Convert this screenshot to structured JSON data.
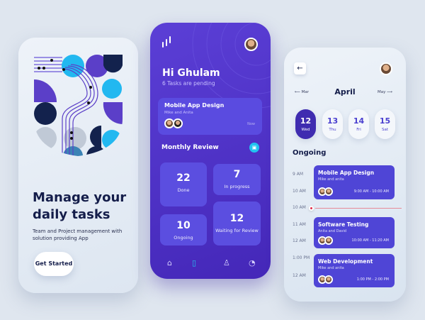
{
  "onboarding": {
    "heading_line1": "Manage your",
    "heading_line2": "daily tasks",
    "subtitle": "Team and Project management with solution providing App",
    "cta": "Get Started"
  },
  "home": {
    "greeting": "Hi Ghulam",
    "pending": "6 Tasks are pending",
    "featured": {
      "title": "Mobile App Design",
      "members": "Mike and Anita",
      "time": "Now"
    },
    "section_title": "Monthly Review",
    "stats": [
      {
        "value": "22",
        "label": "Done"
      },
      {
        "value": "7",
        "label": "In progress"
      },
      {
        "value": "10",
        "label": "Ongoing"
      },
      {
        "value": "12",
        "label": "Waiting for Review"
      }
    ],
    "nav": [
      "home-icon",
      "document-icon",
      "profile-icon",
      "bell-icon"
    ],
    "accent": "#22c4f0"
  },
  "calendar": {
    "prev": "Mar",
    "month": "April",
    "next": "May",
    "days": [
      {
        "date": "12",
        "day": "Wed",
        "selected": true
      },
      {
        "date": "13",
        "day": "Thu"
      },
      {
        "date": "14",
        "day": "Fri"
      },
      {
        "date": "15",
        "day": "Sat"
      }
    ],
    "section_title": "Ongoing",
    "times": [
      "9 AM",
      "10 AM",
      "10 AM",
      "11 AM",
      "12 AM",
      "1:00 PM",
      "12 AM"
    ],
    "events": [
      {
        "title": "Mobile App Design",
        "members": "Mike and anita",
        "range": "9:00 AM - 10:00 AM"
      },
      {
        "title": "Software Testing",
        "members": "Anita and David",
        "range": "10:00 AM - 11:20 AM"
      },
      {
        "title": "Web Development",
        "members": "Mike and anita",
        "range": "1:00 PM - 2:00 PM"
      }
    ]
  }
}
